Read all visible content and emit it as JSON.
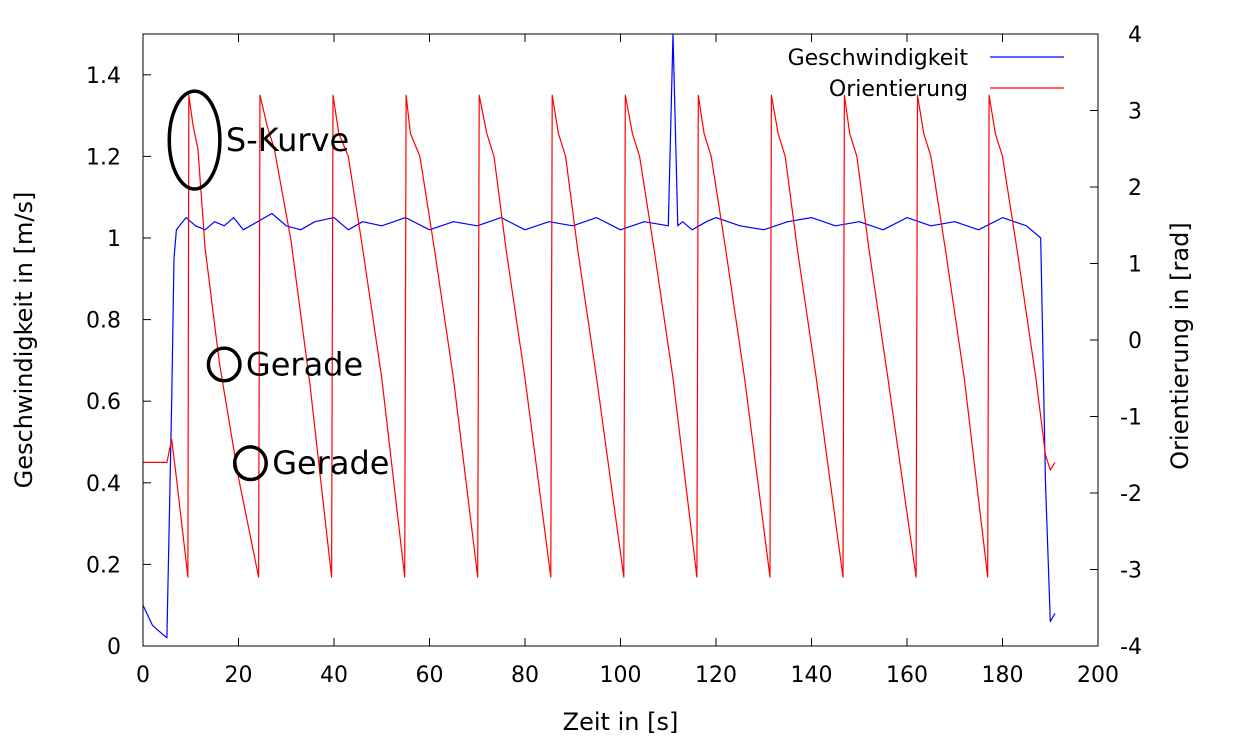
{
  "chart_data": {
    "type": "line",
    "title": "",
    "xlabel": "Zeit in [s]",
    "ylabel": "Geschwindigkeit in [m/s]",
    "y2label": "Orientierung in [rad]",
    "xlim": [
      0,
      200
    ],
    "ylim": [
      0,
      1.5
    ],
    "y2lim": [
      -4,
      4
    ],
    "x_ticks": [
      0,
      20,
      40,
      60,
      80,
      100,
      120,
      140,
      160,
      180,
      200
    ],
    "y_ticks": [
      0,
      0.2,
      0.4,
      0.6,
      0.8,
      1,
      1.2,
      1.4
    ],
    "y_tick_labels": [
      "0",
      "0.2",
      "0.4",
      "0.6",
      "0.8",
      "1",
      "1.2",
      "1.4"
    ],
    "y2_ticks": [
      -4,
      -3,
      -2,
      -1,
      0,
      1,
      2,
      3,
      4
    ],
    "grid": false,
    "legend": "top-right",
    "series": [
      {
        "name": "Geschwindigkeit",
        "axis": "y",
        "color": "#0000ff",
        "x": [
          0,
          2,
          4,
          5,
          6,
          6.5,
          7,
          9,
          11,
          13,
          15,
          17,
          19,
          21,
          24,
          27,
          30,
          33,
          36,
          40,
          43,
          46,
          50,
          55,
          60,
          65,
          70,
          75,
          80,
          85,
          90,
          95,
          100,
          105,
          110,
          111,
          112,
          113,
          115,
          118,
          120,
          125,
          130,
          135,
          140,
          145,
          150,
          155,
          160,
          165,
          170,
          175,
          180,
          185,
          188,
          189,
          190,
          191
        ],
        "values": [
          0.1,
          0.05,
          0.03,
          0.02,
          0.6,
          0.95,
          1.02,
          1.05,
          1.03,
          1.02,
          1.04,
          1.03,
          1.05,
          1.02,
          1.04,
          1.06,
          1.03,
          1.02,
          1.04,
          1.05,
          1.02,
          1.04,
          1.03,
          1.05,
          1.02,
          1.04,
          1.03,
          1.05,
          1.02,
          1.04,
          1.03,
          1.05,
          1.02,
          1.04,
          1.03,
          1.5,
          1.03,
          1.04,
          1.02,
          1.04,
          1.05,
          1.03,
          1.02,
          1.04,
          1.05,
          1.03,
          1.04,
          1.02,
          1.05,
          1.03,
          1.04,
          1.02,
          1.05,
          1.03,
          1.0,
          0.4,
          0.06,
          0.08
        ]
      },
      {
        "name": "Orientierung",
        "axis": "y2",
        "color": "#ff0000",
        "x": [
          0,
          5,
          6,
          7,
          9.4,
          9.6,
          10.5,
          11.5,
          13,
          16,
          20,
          24.2,
          24.5,
          26,
          27.5,
          31,
          35,
          39.5,
          39.8,
          41,
          43,
          46,
          50,
          54.8,
          55.1,
          56,
          58,
          61,
          65,
          70.1,
          70.4,
          72,
          73.5,
          76,
          80,
          85.4,
          85.7,
          87,
          88.5,
          91,
          95,
          100.7,
          101,
          102.5,
          104,
          107,
          111,
          116,
          116.3,
          117.5,
          119,
          122,
          126,
          131.3,
          131.6,
          133,
          134.5,
          137,
          141,
          146.6,
          146.9,
          148,
          149.5,
          152,
          156,
          161.9,
          162.2,
          163.5,
          165,
          168,
          172,
          176.9,
          177.2,
          178.5,
          180,
          183,
          187,
          189,
          190,
          191
        ],
        "values": [
          -1.6,
          -1.6,
          -1.3,
          -1.8,
          -3.1,
          3.2,
          2.8,
          2.5,
          1.2,
          -0.3,
          -1.8,
          -3.1,
          3.2,
          2.8,
          2.5,
          1.3,
          -0.6,
          -3.1,
          3.2,
          2.7,
          2.4,
          1.2,
          -0.5,
          -3.1,
          3.2,
          2.7,
          2.4,
          1.2,
          -0.5,
          -3.1,
          3.2,
          2.7,
          2.4,
          1.2,
          -0.5,
          -3.1,
          3.2,
          2.7,
          2.4,
          1.2,
          -0.5,
          -3.1,
          3.2,
          2.7,
          2.4,
          1.2,
          -0.5,
          -3.1,
          3.2,
          2.7,
          2.4,
          1.2,
          -0.5,
          -3.1,
          3.2,
          2.7,
          2.4,
          1.2,
          -0.5,
          -3.1,
          3.2,
          2.7,
          2.4,
          1.2,
          -0.5,
          -3.1,
          3.2,
          2.7,
          2.4,
          1.2,
          -0.5,
          -3.1,
          3.2,
          2.7,
          2.4,
          1.2,
          -0.5,
          -1.5,
          -1.7,
          -1.6
        ]
      }
    ],
    "annotations": [
      {
        "text": "S-Kurve",
        "x": 10.8,
        "y": 1.24,
        "rx": 5.3,
        "ry": 0.12
      },
      {
        "text": "Gerade",
        "x": 17,
        "y": 0.69,
        "rx": 3.3,
        "ry": 0.04
      },
      {
        "text": "Gerade",
        "x": 22.5,
        "y": 0.448,
        "rx": 3.3,
        "ry": 0.04
      }
    ]
  }
}
